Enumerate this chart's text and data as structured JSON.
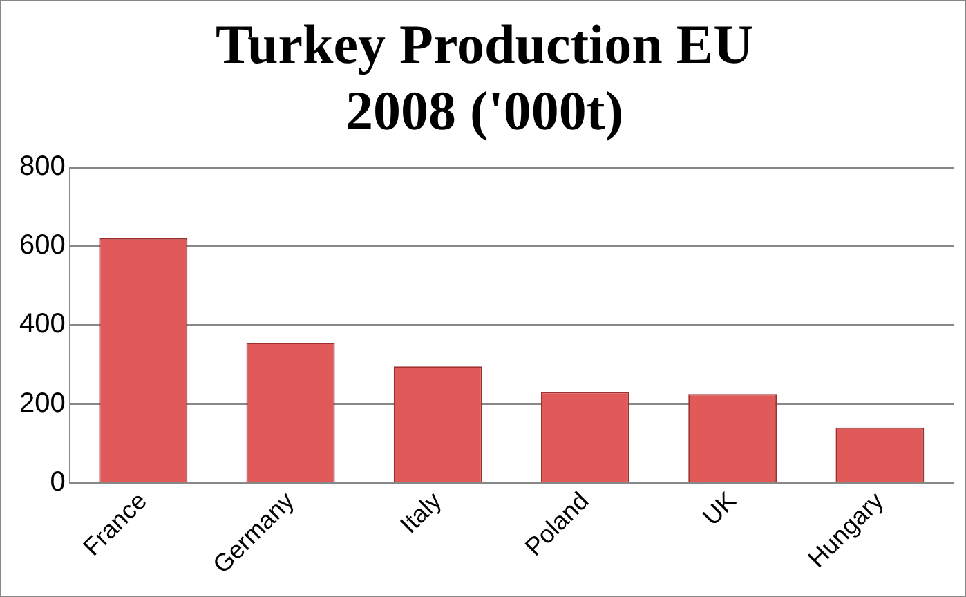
{
  "chart_data": {
    "type": "bar",
    "title": "Turkey Production EU 2008 ('000t)",
    "categories": [
      "France",
      "Germany",
      "Italy",
      "Poland",
      "UK",
      "Hungary"
    ],
    "values": [
      620,
      355,
      295,
      230,
      225,
      140
    ],
    "color": "#e05a5a",
    "ylim": [
      0,
      800
    ],
    "yticks": [
      0,
      200,
      400,
      600,
      800
    ],
    "grid": "y"
  }
}
